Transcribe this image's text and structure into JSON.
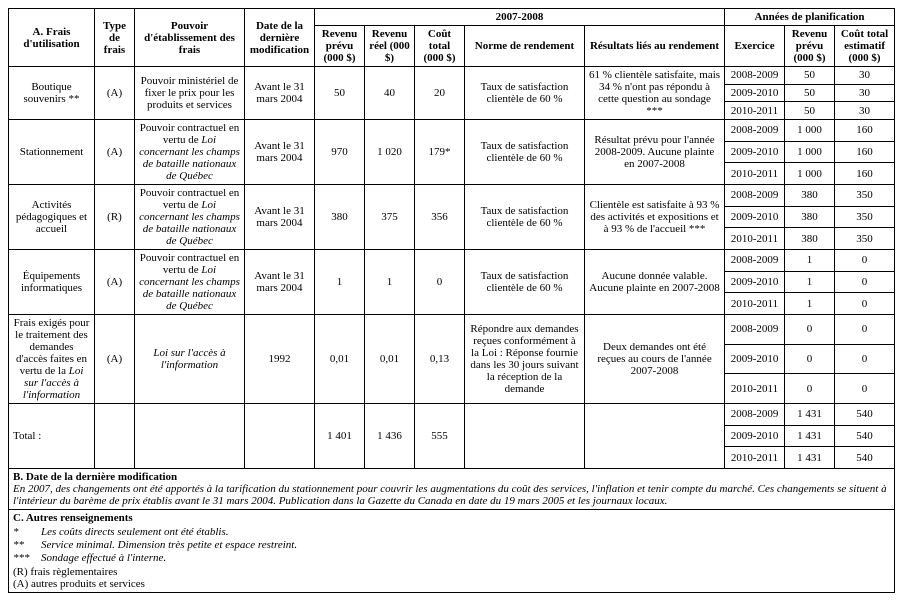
{
  "headers": {
    "frais": "A. Frais d'utilisation",
    "type": "Type de frais",
    "pouvoir": "Pouvoir d'établissement des frais",
    "date_mod": "Date de la dernière modification",
    "annee0708": "2007-2008",
    "plan": "Années de planification",
    "rev_prevu": "Revenu prévu (000 $)",
    "rev_reel": "Revenu réel (000 $)",
    "cout_total": "Coût total (000 $)",
    "norme": "Norme de rendement",
    "resultats": "Résultats liés au rendement",
    "exercice": "Exercice",
    "cout_estim": "Coût total estimatif (000 $)"
  },
  "rows": [
    {
      "label": "Boutique souvenirs **",
      "type": "(A)",
      "power": "Pouvoir ministériel de fixer le prix pour les produits et services",
      "date": "Avant le 31 mars 2004",
      "rp": "50",
      "rr": "40",
      "ct": "20",
      "norme": "Taux de satisfaction clientèle de 60 %",
      "result": "61 % clientèle satisfaite, mais 34 % n'ont pas répondu à cette question au sondage ***",
      "plan": [
        {
          "ex": "2008-2009",
          "rp": "50",
          "ce": "30"
        },
        {
          "ex": "2009-2010",
          "rp": "50",
          "ce": "30"
        },
        {
          "ex": "2010-2011",
          "rp": "50",
          "ce": "30"
        }
      ]
    },
    {
      "label": "Stationnement",
      "type": "(A)",
      "power": "Pouvoir contractuel en vertu de Loi concernant les champs de bataille nationaux de Québec",
      "power_italic": "Loi concernant les champs de bataille nationaux de Québec",
      "power_prefix": "Pouvoir contractuel en vertu de ",
      "date": "Avant le 31 mars 2004",
      "rp": "970",
      "rr": "1 020",
      "ct": "179*",
      "norme": "Taux de satisfaction clientèle de 60 %",
      "result": "Résultat prévu pour l'année 2008-2009. Aucune plainte en 2007-2008",
      "plan": [
        {
          "ex": "2008-2009",
          "rp": "1 000",
          "ce": "160"
        },
        {
          "ex": "2009-2010",
          "rp": "1 000",
          "ce": "160"
        },
        {
          "ex": "2010-2011",
          "rp": "1 000",
          "ce": "160"
        }
      ]
    },
    {
      "label": "Activités pédagogiques et accueil",
      "type": "(R)",
      "power_prefix": "Pouvoir contractuel en vertu de ",
      "power_italic": "Loi concernant les champs de bataille nationaux de Québec",
      "date": "Avant le 31 mars 2004",
      "rp": "380",
      "rr": "375",
      "ct": "356",
      "norme": "Taux de satisfaction clientèle de 60 %",
      "result": "Clientèle est satisfaite à 93 % des activités et expositions et à 93 % de l'accueil ***",
      "plan": [
        {
          "ex": "2008-2009",
          "rp": "380",
          "ce": "350"
        },
        {
          "ex": "2009-2010",
          "rp": "380",
          "ce": "350"
        },
        {
          "ex": "2010-2011",
          "rp": "380",
          "ce": "350"
        }
      ]
    },
    {
      "label": "Équipements informatiques",
      "type": "(A)",
      "power_prefix": "Pouvoir contractuel en vertu de ",
      "power_italic": "Loi concernant les champs de bataille nationaux de Québec",
      "date": "Avant le 31 mars 2004",
      "rp": "1",
      "rr": "1",
      "ct": "0",
      "norme": "Taux de satisfaction clientèle de 60 %",
      "result": "Aucune donnée valable. Aucune plainte en 2007-2008",
      "plan": [
        {
          "ex": "2008-2009",
          "rp": "1",
          "ce": "0"
        },
        {
          "ex": "2009-2010",
          "rp": "1",
          "ce": "0"
        },
        {
          "ex": "2010-2011",
          "rp": "1",
          "ce": "0"
        }
      ]
    },
    {
      "label": "Frais exigés pour le traitement des demandes d'accès faites en vertu de la Loi sur l'accès à l'information",
      "label_prefix": "Frais exigés pour le traitement des demandes d'accès faites en vertu de la ",
      "label_italic": "Loi sur l'accès à l'information",
      "type": "(A)",
      "power_italic_full": "Loi sur l'accès à l'information",
      "date": "1992",
      "rp": "0,01",
      "rr": "0,01",
      "ct": "0,13",
      "norme": "Répondre aux demandes reçues conformément à la Loi : Réponse fournie dans les 30 jours suivant la réception de la demande",
      "result": "Deux demandes ont été reçues au cours de l'année 2007-2008",
      "plan": [
        {
          "ex": "2008-2009",
          "rp": "0",
          "ce": "0"
        },
        {
          "ex": "2009-2010",
          "rp": "0",
          "ce": "0"
        },
        {
          "ex": "2010-2011",
          "rp": "0",
          "ce": "0"
        }
      ]
    }
  ],
  "total": {
    "label": "Total :",
    "rp": "1 401",
    "rr": "1 436",
    "ct": "555",
    "plan": [
      {
        "ex": "2008-2009",
        "rp": "1 431",
        "ce": "540"
      },
      {
        "ex": "2009-2010",
        "rp": "1 431",
        "ce": "540"
      },
      {
        "ex": "2010-2011",
        "rp": "1 431",
        "ce": "540"
      }
    ]
  },
  "sectionB": {
    "title": "B. Date de la dernière modification",
    "text": "En 2007, des changements ont été apportés à la tarification du stationnement pour couvrir les augmentations du coût des services, l'inflation et tenir compte du marché. Ces changements se situent à l'intérieur du barème de prix établis avant le 31 mars 2004. Publication dans la Gazette du Canada en date du 19 mars 2005 et les journaux locaux."
  },
  "sectionC": {
    "title": "C. Autres renseignements",
    "notes": [
      {
        "sym": "*",
        "text": "Les coûts directs seulement ont été établis."
      },
      {
        "sym": "**",
        "text": "Service minimal. Dimension très petite et espace restreint."
      },
      {
        "sym": "***",
        "text": "Sondage effectué à l'interne."
      }
    ],
    "legend": [
      "(R) frais règlementaires",
      "(A) autres produits et services"
    ]
  }
}
